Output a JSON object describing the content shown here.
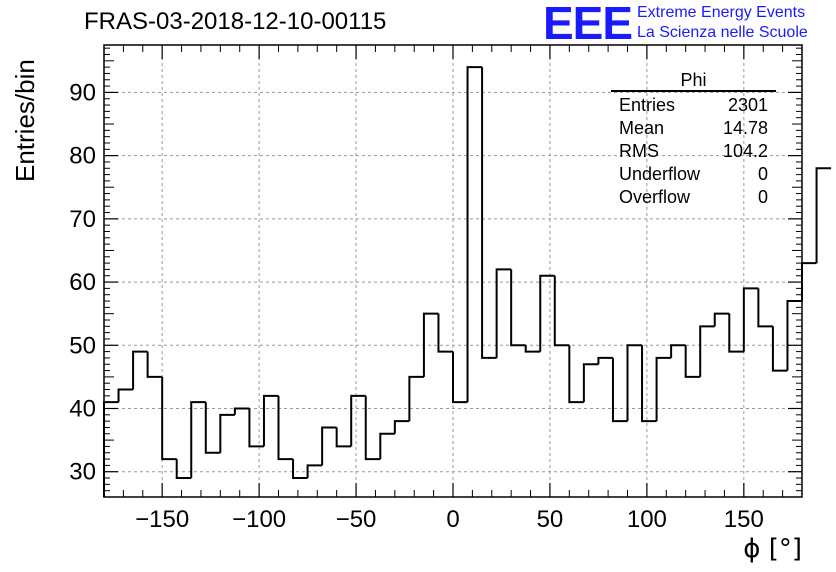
{
  "header": {
    "title": "FRAS-03-2018-12-10-00115",
    "logo": "EEE",
    "logo_line1": "Extreme Energy Events",
    "logo_line2": "La Scienza nelle Scuole"
  },
  "colors": {
    "logo": "#1a1aff",
    "histogram_line": "#000000",
    "grid": "#999999"
  },
  "stats_box": {
    "name": "Phi",
    "rows": [
      {
        "label": "Entries",
        "value": "2301"
      },
      {
        "label": "Mean",
        "value": "14.78"
      },
      {
        "label": "RMS",
        "value": "104.2"
      },
      {
        "label": "Underflow",
        "value": "0"
      },
      {
        "label": "Overflow",
        "value": "0"
      }
    ]
  },
  "chart_data": {
    "type": "histogram",
    "title": "FRAS-03-2018-12-10-00115",
    "xlabel": "ϕ [°]",
    "ylabel": "Entries/bin",
    "xlim": [
      -180,
      180
    ],
    "ylim": [
      26,
      97.5
    ],
    "bin_edges_start": -180,
    "bin_width": 7.5,
    "values": [
      41,
      43,
      49,
      45,
      32,
      29,
      41,
      33,
      39,
      40,
      34,
      42,
      32,
      29,
      31,
      37,
      34,
      42,
      32,
      36,
      38,
      45,
      55,
      49,
      41,
      94,
      48,
      62,
      50,
      49,
      61,
      50,
      41,
      47,
      48,
      38,
      50,
      38,
      48,
      50,
      45,
      53,
      55,
      49,
      59,
      53,
      46,
      57,
      63,
      78
    ],
    "x_ticks": [
      -150,
      -100,
      -50,
      0,
      50,
      100,
      150
    ],
    "x_tick_labels": [
      "−150",
      "−100",
      "−50",
      "0",
      "50",
      "100",
      "150"
    ],
    "y_ticks": [
      30,
      40,
      50,
      60,
      70,
      80,
      90
    ],
    "y_tick_labels": [
      "30",
      "40",
      "50",
      "60",
      "70",
      "80",
      "90"
    ],
    "grid": true,
    "legend": "top-right"
  }
}
